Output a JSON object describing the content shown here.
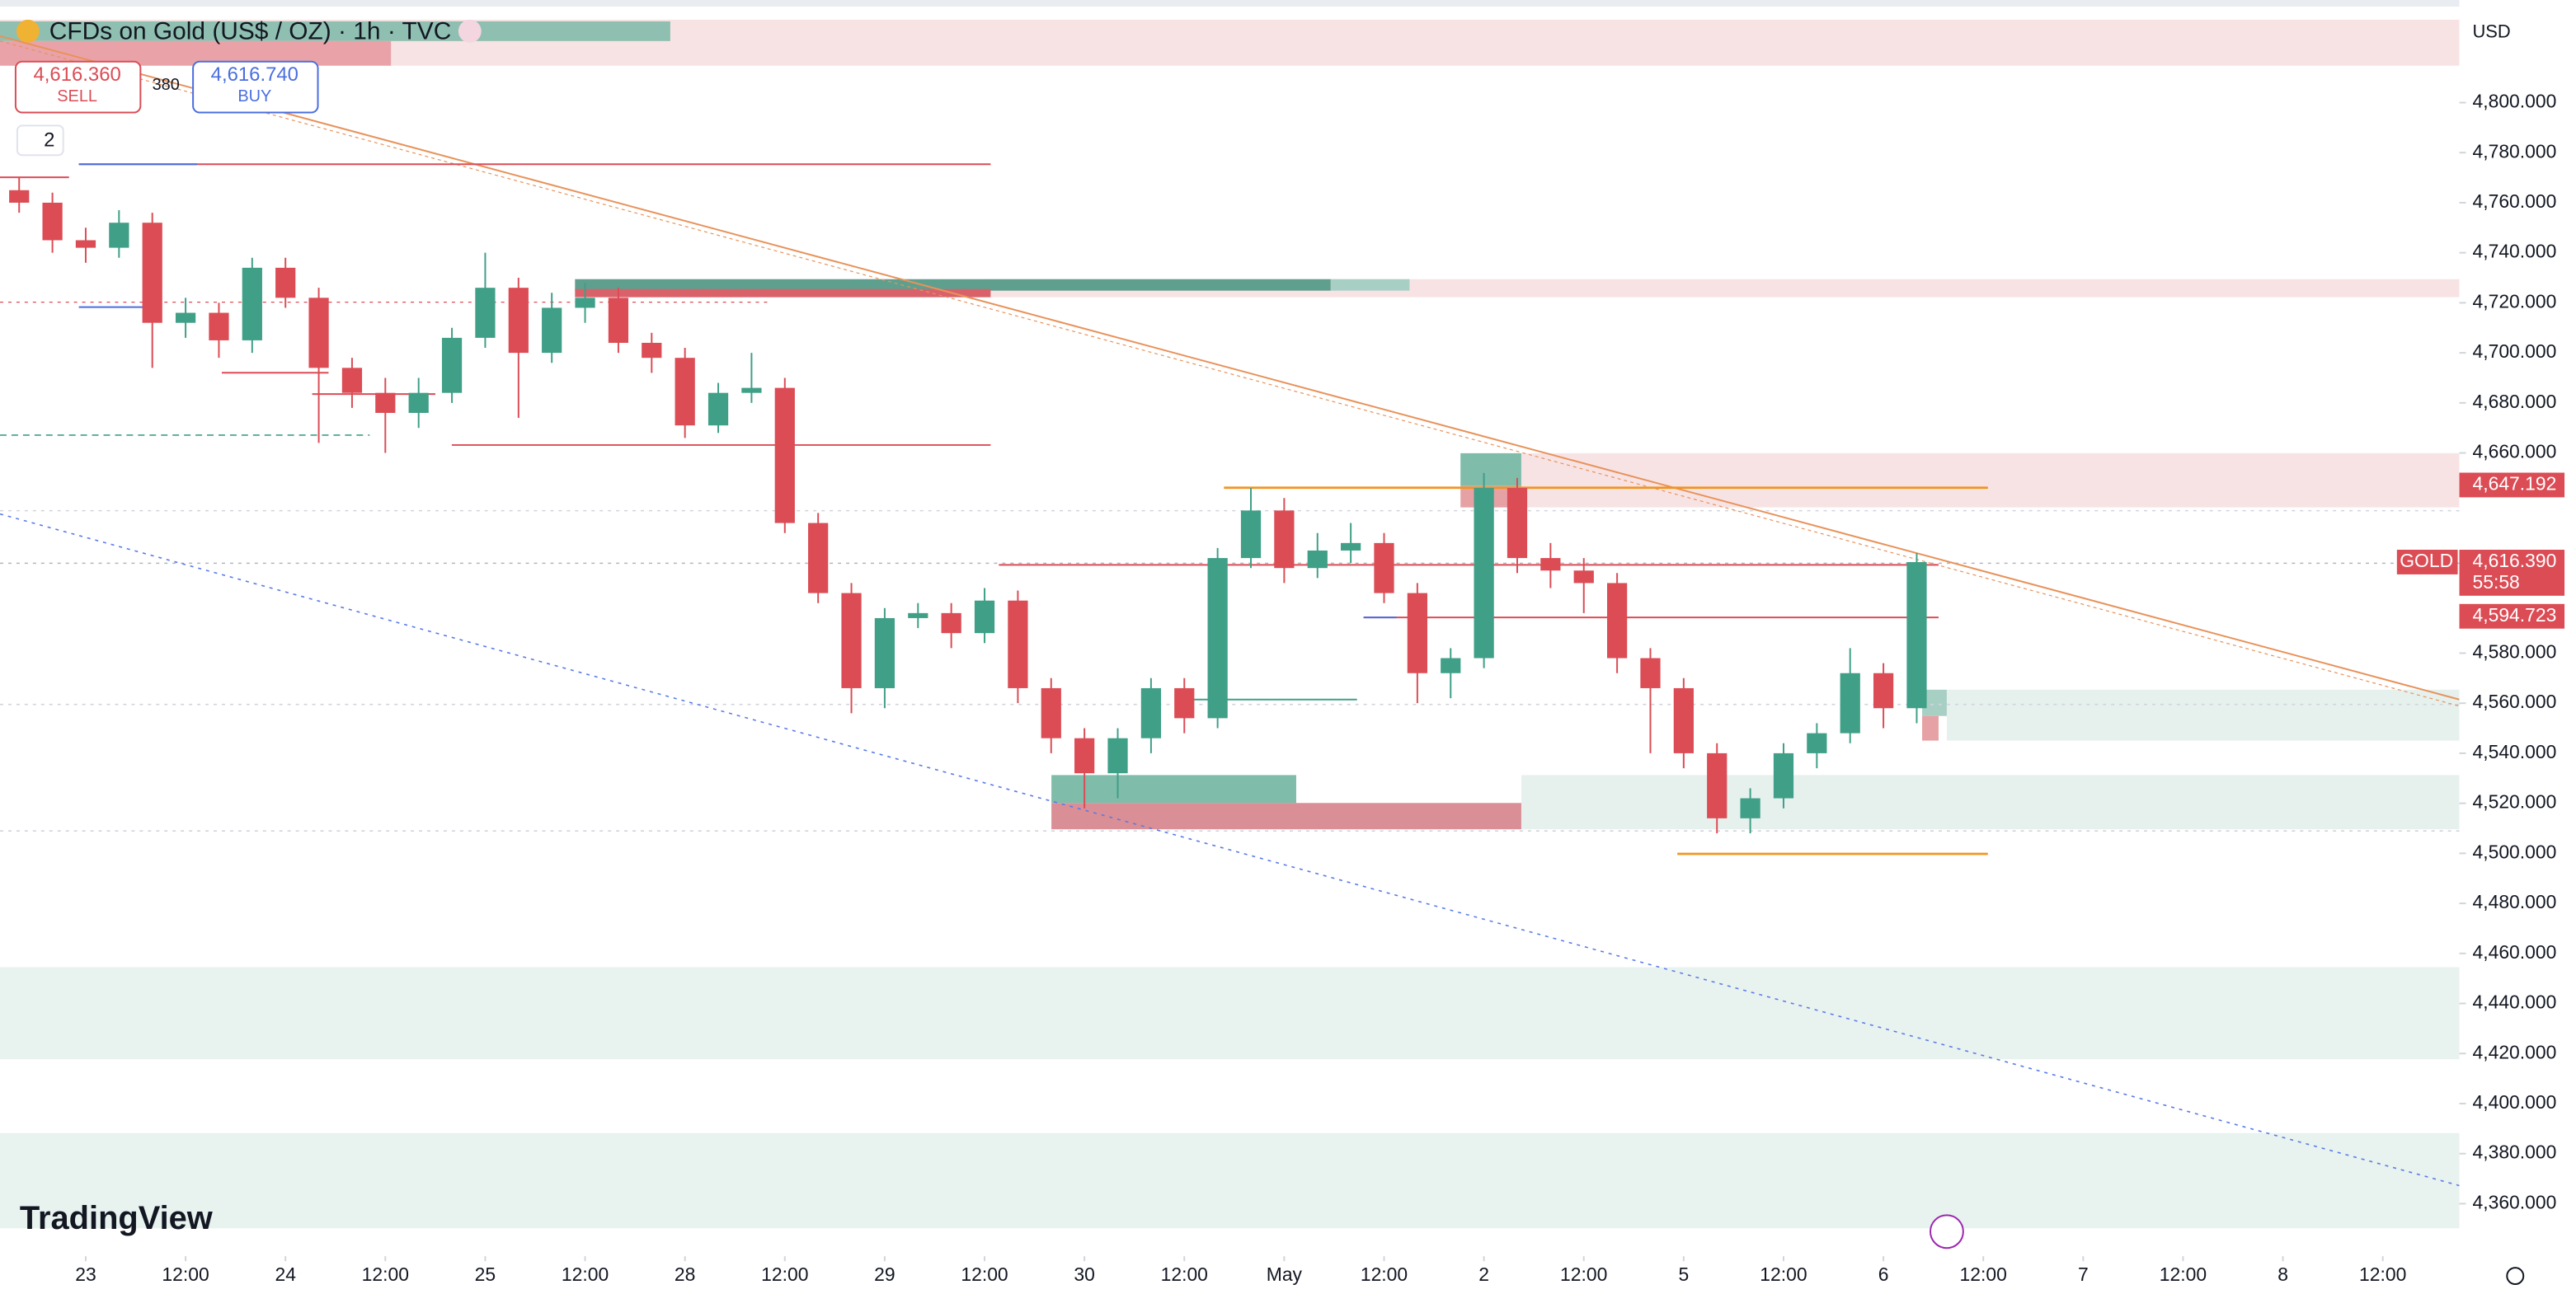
{
  "header": {
    "title": "CFDs on Gold (US$ / OZ) · 1h · TVC",
    "sell_price": "4,616.360",
    "sell_label": "SELL",
    "spread": "380",
    "buy_price": "4,616.740",
    "buy_label": "BUY",
    "indicator_count": "2",
    "currency": "USD",
    "brand": "TradingView"
  },
  "chart_data": {
    "type": "candlestick",
    "x": [
      -8,
      -4,
      0,
      4,
      8,
      12,
      16,
      20,
      24,
      28,
      32,
      36,
      40,
      44,
      48,
      52,
      56,
      60,
      64,
      68,
      72,
      76,
      80,
      84,
      88,
      92,
      96,
      100,
      104,
      108,
      112,
      116,
      120,
      124,
      128,
      132,
      136,
      140,
      144,
      148,
      152,
      156,
      160,
      164,
      168,
      172,
      176,
      180,
      184,
      188,
      192,
      196,
      200,
      204,
      208,
      212,
      216,
      220
    ],
    "open": [
      4765,
      4760,
      4745,
      4742,
      4752,
      4712,
      4716,
      4705,
      4734,
      4722,
      4694,
      4684,
      4676,
      4684,
      4706,
      4726,
      4700,
      4718,
      4722,
      4704,
      4698,
      4671,
      4684,
      4686,
      4632,
      4604,
      4566,
      4594,
      4596,
      4588,
      4601,
      4566,
      4546,
      4532,
      4546,
      4566,
      4554,
      4618,
      4637,
      4614,
      4621,
      4624,
      4604,
      4572,
      4578,
      4646,
      4618,
      4613,
      4608,
      4578,
      4566,
      4540,
      4514,
      4522,
      4540,
      4548,
      4572,
      4558
    ],
    "high": [
      4770,
      4764,
      4750,
      4757,
      4756,
      4722,
      4720,
      4738,
      4738,
      4726,
      4698,
      4690,
      4690,
      4710,
      4740,
      4730,
      4724,
      4728,
      4726,
      4708,
      4702,
      4688,
      4700,
      4690,
      4636,
      4608,
      4598,
      4600,
      4600,
      4606,
      4605,
      4570,
      4550,
      4550,
      4570,
      4570,
      4622,
      4646,
      4642,
      4628,
      4632,
      4628,
      4608,
      4582,
      4652,
      4650,
      4624,
      4618,
      4612,
      4582,
      4570,
      4544,
      4526,
      4544,
      4552,
      4582,
      4576,
      4620
    ],
    "low": [
      4756,
      4740,
      4736,
      4738,
      4694,
      4706,
      4698,
      4700,
      4718,
      4664,
      4678,
      4660,
      4670,
      4680,
      4702,
      4674,
      4696,
      4712,
      4700,
      4692,
      4666,
      4668,
      4680,
      4628,
      4600,
      4556,
      4558,
      4590,
      4582,
      4584,
      4560,
      4540,
      4518,
      4522,
      4540,
      4548,
      4550,
      4614,
      4608,
      4610,
      4616,
      4600,
      4560,
      4562,
      4574,
      4612,
      4606,
      4596,
      4572,
      4540,
      4534,
      4508,
      4508,
      4518,
      4534,
      4544,
      4550,
      4552
    ],
    "close": [
      4760,
      4745,
      4742,
      4752,
      4712,
      4716,
      4705,
      4734,
      4722,
      4694,
      4684,
      4676,
      4684,
      4706,
      4726,
      4700,
      4718,
      4722,
      4704,
      4698,
      4671,
      4684,
      4686,
      4632,
      4604,
      4566,
      4594,
      4596,
      4588,
      4601,
      4566,
      4546,
      4532,
      4546,
      4566,
      4554,
      4618,
      4637,
      4614,
      4621,
      4624,
      4604,
      4572,
      4578,
      4646,
      4618,
      4613,
      4608,
      4578,
      4566,
      4540,
      4514,
      4522,
      4540,
      4548,
      4572,
      4558,
      4616.39
    ],
    "up_color": "#3f9f87",
    "down_color": "#db4c55",
    "xlim": [
      -10.3,
      285.2
    ],
    "xticks": [
      {
        "value": 0,
        "label": "23"
      },
      {
        "value": 12,
        "label": "12:00"
      },
      {
        "value": 24,
        "label": "24"
      },
      {
        "value": 36,
        "label": "12:00"
      },
      {
        "value": 48,
        "label": "25"
      },
      {
        "value": 60,
        "label": "12:00"
      },
      {
        "value": 72,
        "label": "28"
      },
      {
        "value": 84,
        "label": "12:00"
      },
      {
        "value": 96,
        "label": "29"
      },
      {
        "value": 108,
        "label": "12:00"
      },
      {
        "value": 120,
        "label": "30"
      },
      {
        "value": 132,
        "label": "12:00"
      },
      {
        "value": 144,
        "label": "May"
      },
      {
        "value": 156,
        "label": "12:00"
      },
      {
        "value": 168,
        "label": "2"
      },
      {
        "value": 180,
        "label": "12:00"
      },
      {
        "value": 192,
        "label": "5"
      },
      {
        "value": 204,
        "label": "12:00"
      },
      {
        "value": 216,
        "label": "6"
      },
      {
        "value": 228,
        "label": "12:00"
      },
      {
        "value": 240,
        "label": "7"
      },
      {
        "value": 252,
        "label": "12:00"
      },
      {
        "value": 264,
        "label": "8"
      },
      {
        "value": 276,
        "label": "12:00"
      }
    ],
    "ylim": [
      4339,
      4841
    ],
    "yticks": [
      {
        "value": 4360,
        "label": "4,360.000"
      },
      {
        "value": 4380,
        "label": "4,380.000"
      },
      {
        "value": 4400,
        "label": "4,400.000"
      },
      {
        "value": 4420,
        "label": "4,420.000"
      },
      {
        "value": 4440,
        "label": "4,440.000"
      },
      {
        "value": 4460,
        "label": "4,460.000"
      },
      {
        "value": 4480,
        "label": "4,480.000"
      },
      {
        "value": 4500,
        "label": "4,500.000"
      },
      {
        "value": 4520,
        "label": "4,520.000"
      },
      {
        "value": 4540,
        "label": "4,540.000"
      },
      {
        "value": 4560,
        "label": "4,560.000"
      },
      {
        "value": 4580,
        "label": "4,580.000"
      },
      {
        "value": 4660,
        "label": "4,660.000"
      },
      {
        "value": 4680,
        "label": "4,680.000"
      },
      {
        "value": 4700,
        "label": "4,700.000"
      },
      {
        "value": 4720,
        "label": "4,720.000"
      },
      {
        "value": 4740,
        "label": "4,740.000"
      },
      {
        "value": 4760,
        "label": "4,760.000"
      },
      {
        "value": 4780,
        "label": "4,780.000"
      },
      {
        "value": 4800,
        "label": "4,800.000"
      }
    ],
    "grid": false,
    "price_labels": [
      {
        "value": 4647.192,
        "label": "4,647.192"
      },
      {
        "value": 4616.39,
        "label": "4,616.390",
        "symbol": "GOLD",
        "countdown": "55:58"
      },
      {
        "value": 4594.723,
        "label": "4,594.723"
      }
    ],
    "price_label_color": "#db4c55"
  }
}
